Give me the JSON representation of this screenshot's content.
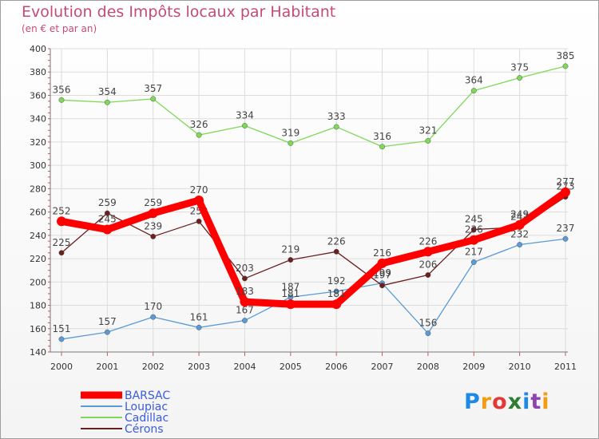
{
  "title": "Evolution des Impôts locaux par Habitant",
  "subtitle": "(en € et par an)",
  "logo": "Proxiti",
  "chart_data": {
    "type": "line",
    "title": "Evolution des Impôts locaux par Habitant",
    "subtitle": "(en € et par an)",
    "xlabel": "",
    "ylabel": "",
    "categories": [
      "2000",
      "2001",
      "2002",
      "2003",
      "2004",
      "2005",
      "2006",
      "2007",
      "2008",
      "2009",
      "2010",
      "2011"
    ],
    "ylim": [
      140,
      400
    ],
    "yticks": [
      140,
      160,
      180,
      200,
      220,
      240,
      260,
      280,
      300,
      320,
      340,
      360,
      380,
      400
    ],
    "grid": true,
    "legend_position": "bottom-left",
    "series": [
      {
        "name": "BARSAC",
        "color": "#ff0000",
        "values": [
          252,
          245,
          259,
          270,
          183,
          181,
          181,
          216,
          226,
          236,
          249,
          277
        ]
      },
      {
        "name": "Loupiac",
        "color": "#5b9bd5",
        "values": [
          151,
          157,
          170,
          161,
          167,
          187,
          192,
          199,
          156,
          217,
          232,
          237
        ]
      },
      {
        "name": "Cadillac",
        "color": "#7ed957",
        "values": [
          356,
          354,
          357,
          326,
          334,
          319,
          333,
          316,
          321,
          364,
          375,
          385
        ]
      },
      {
        "name": "Cérons",
        "color": "#6b1f1f",
        "values": [
          225,
          259,
          239,
          252,
          203,
          219,
          226,
          197,
          206,
          245,
          247,
          273
        ]
      }
    ],
    "data_labels": [
      {
        "series": "BARSAC",
        "labels": [
          "252",
          "245",
          "259",
          "270",
          "183",
          "181",
          "181",
          "216",
          "226",
          "236",
          "249",
          "277"
        ]
      },
      {
        "series": "Loupiac",
        "labels": [
          "151",
          "157",
          "170",
          "161",
          "167",
          "187",
          "192",
          "199",
          "156",
          "217",
          "232",
          "237"
        ]
      },
      {
        "series": "Cadillac",
        "labels": [
          "356",
          "354",
          "357",
          "326",
          "334",
          "319",
          "333",
          "316",
          "321",
          "364",
          "375",
          "385"
        ]
      },
      {
        "series": "Cérons",
        "labels": [
          "225",
          "259",
          "239",
          "252",
          "203",
          "219",
          "226",
          "197",
          "206",
          "245",
          "247",
          "273"
        ]
      }
    ]
  }
}
